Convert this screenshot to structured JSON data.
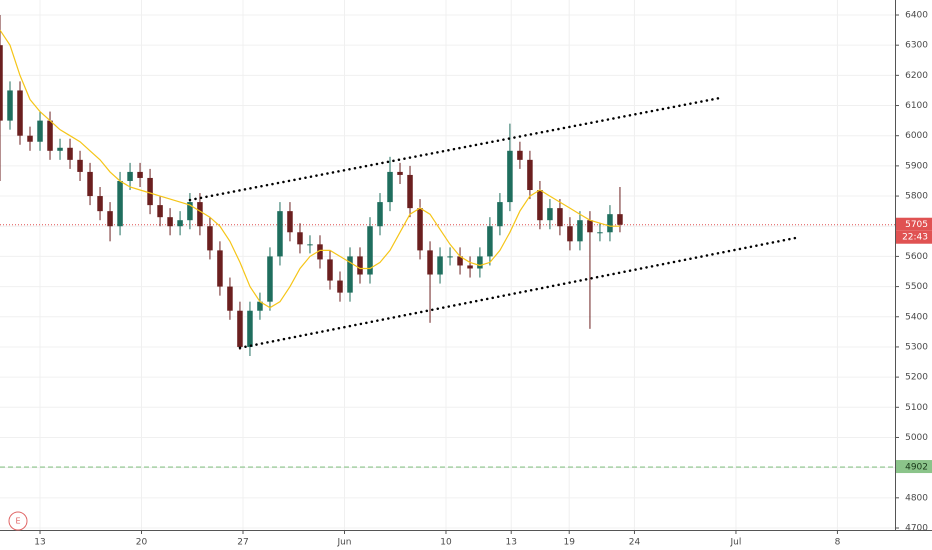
{
  "chart_data": {
    "type": "candlestick",
    "x": [
      -2.76,
      -2.07,
      -1.38,
      -0.69,
      0,
      0.69,
      1.38,
      2.07,
      2.76,
      3.45,
      4.14,
      4.83,
      5.52,
      6.21,
      6.9,
      7.59,
      8.28,
      8.97,
      9.66,
      10.34,
      11.03,
      11.72,
      12.41,
      13.1,
      13.79,
      14.48,
      15.17,
      15.86,
      16.55,
      17.24,
      17.93,
      18.62,
      19.31,
      20,
      20.69,
      21.38,
      22.07,
      22.76,
      23.45,
      24.14,
      24.83,
      25.52,
      26.21,
      26.9,
      27.59,
      28.28,
      28.97,
      29.66,
      30.34,
      31.03,
      31.72,
      32.41,
      33.1,
      33.79,
      34.48,
      35.17,
      35.86,
      36.55,
      37.24,
      37.93,
      38.62,
      39.31,
      40
    ],
    "open": [
      6300,
      6050,
      6150,
      6000,
      5980,
      6050,
      5950,
      5960,
      5920,
      5880,
      5800,
      5750,
      5700,
      5850,
      5880,
      5860,
      5770,
      5730,
      5700,
      5720,
      5780,
      5700,
      5620,
      5500,
      5420,
      5300,
      5420,
      5450,
      5600,
      5750,
      5680,
      5640,
      5640,
      5590,
      5520,
      5480,
      5600,
      5540,
      5700,
      5780,
      5880,
      5870,
      5760,
      5620,
      5540,
      5600,
      5600,
      5570,
      5560,
      5600,
      5700,
      5780,
      5950,
      5920,
      5820,
      5720,
      5760,
      5700,
      5650,
      5720,
      5680,
      5680,
      5740
    ],
    "high": [
      6400,
      6180,
      6180,
      6030,
      6080,
      6080,
      5990,
      5990,
      5950,
      5910,
      5830,
      5780,
      5880,
      5910,
      5910,
      5890,
      5800,
      5760,
      5750,
      5810,
      5810,
      5730,
      5650,
      5530,
      5450,
      5450,
      5480,
      5630,
      5780,
      5780,
      5710,
      5670,
      5670,
      5620,
      5550,
      5630,
      5630,
      5730,
      5810,
      5930,
      5910,
      5900,
      5790,
      5650,
      5630,
      5630,
      5630,
      5600,
      5630,
      5730,
      5810,
      6040,
      5980,
      5950,
      5850,
      5790,
      5790,
      5730,
      5750,
      5750,
      5710,
      5770,
      5830
    ],
    "low": [
      5850,
      6020,
      5970,
      5950,
      5950,
      5920,
      5920,
      5890,
      5850,
      5770,
      5720,
      5650,
      5670,
      5820,
      5830,
      5740,
      5700,
      5670,
      5670,
      5690,
      5670,
      5590,
      5470,
      5390,
      5290,
      5270,
      5390,
      5420,
      5570,
      5650,
      5610,
      5610,
      5560,
      5490,
      5450,
      5450,
      5510,
      5510,
      5670,
      5750,
      5840,
      5730,
      5590,
      5380,
      5510,
      5570,
      5540,
      5530,
      5530,
      5570,
      5670,
      5750,
      5890,
      5790,
      5690,
      5690,
      5670,
      5620,
      5620,
      5360,
      5650,
      5650,
      5680
    ],
    "close": [
      6050,
      6150,
      6000,
      5980,
      6050,
      5950,
      5960,
      5920,
      5880,
      5800,
      5750,
      5700,
      5850,
      5880,
      5860,
      5770,
      5730,
      5700,
      5720,
      5780,
      5700,
      5620,
      5500,
      5420,
      5300,
      5420,
      5450,
      5600,
      5750,
      5680,
      5640,
      5640,
      5590,
      5520,
      5480,
      5600,
      5540,
      5700,
      5780,
      5880,
      5870,
      5760,
      5620,
      5540,
      5600,
      5600,
      5570,
      5560,
      5600,
      5700,
      5780,
      5950,
      5920,
      5820,
      5720,
      5760,
      5700,
      5650,
      5720,
      5680,
      5680,
      5740,
      5705
    ],
    "up_color": "#1f6e5e",
    "down_color": "#6b1f1f",
    "ma_values": [
      6350,
      6300,
      6200,
      6120,
      6080,
      6050,
      6020,
      6000,
      5980,
      5950,
      5920,
      5880,
      5850,
      5830,
      5820,
      5810,
      5800,
      5790,
      5780,
      5770,
      5750,
      5730,
      5700,
      5650,
      5580,
      5500,
      5450,
      5430,
      5450,
      5500,
      5560,
      5600,
      5620,
      5620,
      5600,
      5580,
      5560,
      5560,
      5580,
      5620,
      5680,
      5740,
      5760,
      5740,
      5690,
      5640,
      5600,
      5580,
      5570,
      5580,
      5620,
      5680,
      5750,
      5800,
      5820,
      5800,
      5780,
      5760,
      5740,
      5720,
      5710,
      5700,
      5700
    ],
    "ma_color": "#f5c518",
    "trend_lines": [
      {
        "x": [
          10.34,
          46.9
        ],
        "y": [
          5787,
          6125
        ]
      },
      {
        "x": [
          13.79,
          52.41
        ],
        "y": [
          5297,
          5664
        ]
      }
    ],
    "last_price": 5705,
    "last_price_color": "#e05252",
    "countdown": "22:43",
    "support_level": 4902,
    "support_color": "#8bc48a",
    "badge": "E",
    "xlim": [
      -2.76,
      58.97
    ],
    "xticks": [
      {
        "value": 0,
        "label": "13"
      },
      {
        "value": 7,
        "label": "20"
      },
      {
        "value": 14,
        "label": "27"
      },
      {
        "value": 21,
        "label": "Jun"
      },
      {
        "value": 28,
        "label": "10"
      },
      {
        "value": 32.5,
        "label": "13"
      },
      {
        "value": 36.5,
        "label": "19"
      },
      {
        "value": 41,
        "label": "24"
      },
      {
        "value": 48,
        "label": "Jul"
      },
      {
        "value": 55,
        "label": "8"
      }
    ],
    "ylim": [
      4700,
      6400
    ],
    "yticks": [
      4700,
      4800,
      4900,
      5000,
      5100,
      5200,
      5300,
      5400,
      5500,
      5600,
      5700,
      5800,
      5900,
      6000,
      6100,
      6200,
      6300,
      6400
    ],
    "grid": true
  }
}
